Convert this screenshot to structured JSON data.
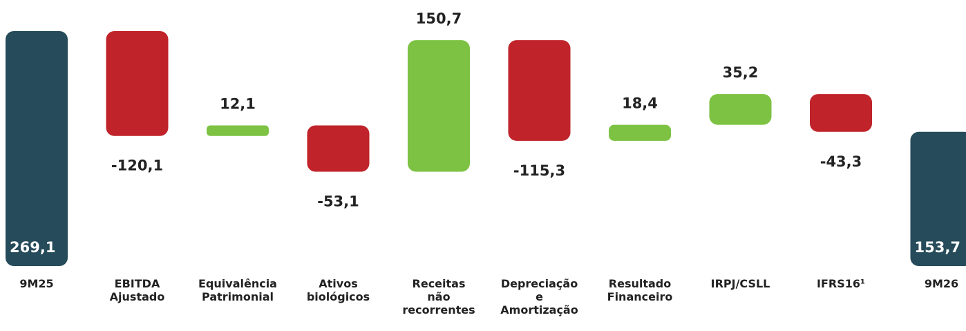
{
  "chart_data": {
    "type": "waterfall",
    "categories": [
      "9M25",
      "EBITDA Ajustado",
      "Equivalência Patrimonial",
      "Ativos biológicos",
      "Receitas não recorrentes",
      "Depreciação e Amortização",
      "Resultado Financeiro",
      "IRPJ/CSLL",
      "IFRS16¹",
      "9M26"
    ],
    "values": [
      269.1,
      -120.1,
      12.1,
      -53.1,
      150.7,
      -115.3,
      18.4,
      35.2,
      -43.3,
      153.7
    ],
    "value_labels": [
      "269,1",
      "-120,1",
      "12,1",
      "-53,1",
      "150,7",
      "-115,3",
      "18,4",
      "35,2",
      "-43,3",
      "153,7"
    ],
    "is_total": [
      true,
      false,
      false,
      false,
      false,
      false,
      false,
      false,
      false,
      true
    ],
    "colors": {
      "total": "#264b5a",
      "increase": "#7dc242",
      "decrease": "#c0232a"
    }
  }
}
